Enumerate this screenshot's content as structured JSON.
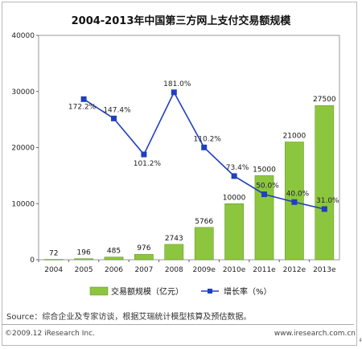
{
  "chart_data": {
    "type": "bar+line",
    "title": "2004-2013年中国第三方网上支付交易额规模",
    "categories": [
      "2004",
      "2005",
      "2006",
      "2007",
      "2008",
      "2009e",
      "2010e",
      "2011e",
      "2012e",
      "2013e"
    ],
    "bar_series": {
      "name": "交易额规模（亿元）",
      "values": [
        72,
        196,
        485,
        976,
        2743,
        5766,
        10000,
        15000,
        21000,
        27500
      ],
      "labels": [
        "72",
        "196",
        "485",
        "976",
        "2743",
        "5766",
        "10000",
        "15000",
        "21000",
        "27500"
      ],
      "color": "#8cc63f"
    },
    "line_series": {
      "name": "增长率（%）",
      "values": [
        172.2,
        147.4,
        101.2,
        181.0,
        110.2,
        73.4,
        50.0,
        40.0,
        31.0
      ],
      "labels": [
        "172.2%",
        "147.4%",
        "101.2%",
        "181.0%",
        "110.2%",
        "73.4%",
        "50.0%",
        "40.0%",
        "31.0%"
      ],
      "categories": [
        "2005",
        "2006",
        "2007",
        "2008",
        "2009e",
        "2010e",
        "2011e",
        "2012e",
        "2013e"
      ],
      "color": "#1f3fbf"
    },
    "yaxis": {
      "min": 0,
      "max": 40000,
      "ticks": [
        "0",
        "10000",
        "20000",
        "30000",
        "40000"
      ]
    },
    "legend_position": "bottom"
  },
  "source_text": "Source：综合企业及专家访谈，根据艾瑞统计模型核算及预估数据。",
  "copyright": "©2009.12 iResearch Inc.",
  "website": "www.iresearch.com.cn",
  "corner_mark": "4"
}
